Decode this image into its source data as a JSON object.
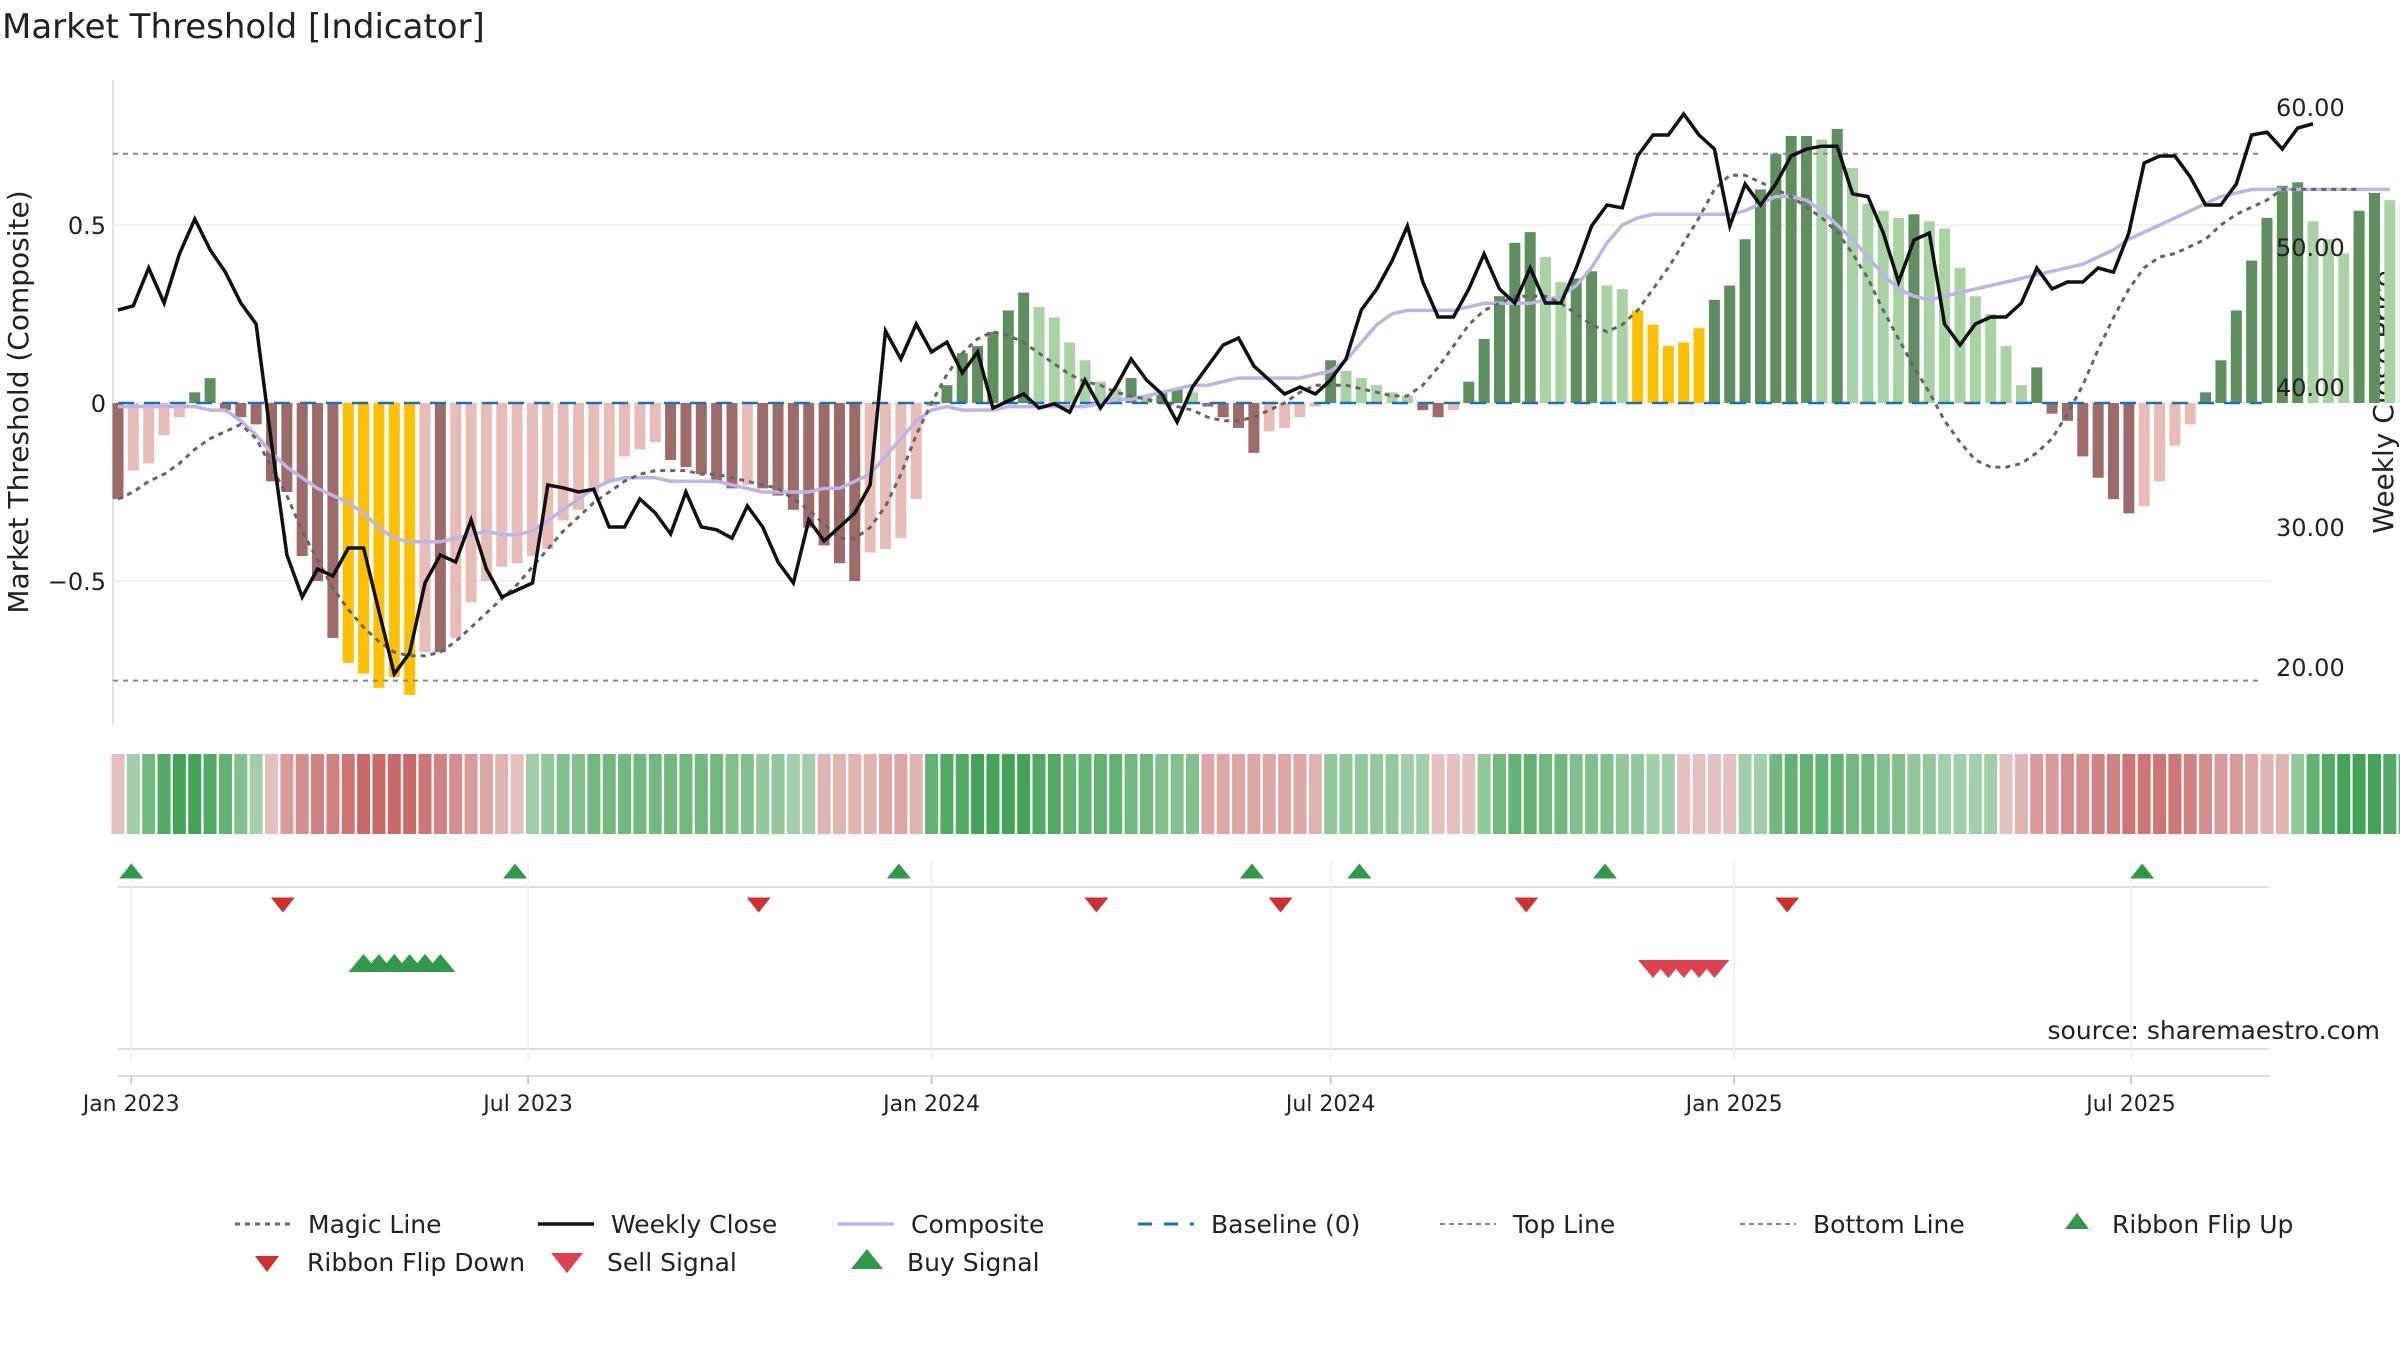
{
  "chart_data": {
    "type": "bar",
    "title": "Market Threshold [Indicator]",
    "ylabel": "Market Threshold (Composite)",
    "y2label": "Weekly Close Price",
    "source": "source: sharemaestro.com",
    "ylim": [
      -0.9,
      0.9
    ],
    "y2lim": [
      16.0,
      62.0
    ],
    "yticks": [
      {
        "v": 0.5,
        "label": "0.5"
      },
      {
        "v": 0,
        "label": "0"
      },
      {
        "v": -0.5,
        "label": "−0.5"
      }
    ],
    "y2ticks": [
      {
        "v": 60,
        "label": "60.00"
      },
      {
        "v": 50,
        "label": "50.00"
      },
      {
        "v": 40,
        "label": "40.00"
      },
      {
        "v": 30,
        "label": "30.00"
      },
      {
        "v": 20,
        "label": "20.00"
      }
    ],
    "top_line": 0.7,
    "bottom_line": -0.78,
    "baseline": 0,
    "start_date": "2022-12-26",
    "x_ticks": [
      {
        "date": "2023-01-01",
        "label": "Jan 2023"
      },
      {
        "date": "2023-07-01",
        "label": "Jul 2023"
      },
      {
        "date": "2024-01-01",
        "label": "Jan 2024"
      },
      {
        "date": "2024-07-01",
        "label": "Jul 2024"
      },
      {
        "date": "2025-01-01",
        "label": "Jan 2025"
      },
      {
        "date": "2025-07-01",
        "label": "Jul 2025"
      }
    ],
    "colors": {
      "dark_green": "#5f8f5f",
      "light_green": "#a9d3a4",
      "dark_red": "#9e6b6b",
      "light_red": "#e9bdb7",
      "yellow": "#ffc000",
      "magic": "#666666",
      "close": "#111111",
      "composite": "#bdb5e6",
      "baseline": "#1f6fb5",
      "thresh": "#888888",
      "flip_up": "#2e9a4a",
      "flip_down": "#cf2f2f",
      "buy": "#2e9a4a",
      "sell": "#e04050"
    },
    "series": [
      {
        "name": "Composite (bars)",
        "values": [
          -0.27,
          -0.19,
          -0.17,
          -0.09,
          -0.04,
          0.03,
          0.07,
          -0.02,
          -0.04,
          -0.06,
          -0.22,
          -0.25,
          -0.43,
          -0.5,
          -0.66,
          -0.73,
          -0.76,
          -0.8,
          -0.77,
          -0.82,
          -0.7,
          -0.7,
          -0.66,
          -0.56,
          -0.5,
          -0.46,
          -0.45,
          -0.43,
          -0.41,
          -0.33,
          -0.3,
          -0.25,
          -0.22,
          -0.15,
          -0.13,
          -0.11,
          -0.16,
          -0.18,
          -0.2,
          -0.22,
          -0.24,
          -0.23,
          -0.24,
          -0.26,
          -0.3,
          -0.35,
          -0.4,
          -0.45,
          -0.5,
          -0.42,
          -0.41,
          -0.38,
          -0.27,
          -0.01,
          0.05,
          0.14,
          0.16,
          0.2,
          0.26,
          0.31,
          0.27,
          0.24,
          0.17,
          0.12,
          0.06,
          0.04,
          0.07,
          0.02,
          0.03,
          0.04,
          0.03,
          -0.01,
          -0.04,
          -0.07,
          -0.14,
          -0.08,
          -0.07,
          -0.04,
          -0.01,
          0.12,
          0.09,
          0.07,
          0.05,
          0.03,
          0.02,
          -0.02,
          -0.04,
          -0.02,
          0.06,
          0.18,
          0.3,
          0.45,
          0.48,
          0.41,
          0.34,
          0.35,
          0.37,
          0.33,
          0.32,
          0.26,
          0.22,
          0.16,
          0.17,
          0.21,
          0.29,
          0.33,
          0.46,
          0.6,
          0.7,
          0.75,
          0.75,
          0.74,
          0.77,
          0.66,
          0.56,
          0.54,
          0.52,
          0.53,
          0.51,
          0.49,
          0.38,
          0.3,
          0.25,
          0.16,
          0.05,
          0.1,
          -0.03,
          -0.05,
          -0.15,
          -0.21,
          -0.27,
          -0.31,
          -0.29,
          -0.22,
          -0.12,
          -0.06,
          0.03,
          0.12,
          0.26,
          0.4,
          0.52,
          0.61,
          0.62,
          0.51,
          0.46,
          0.42,
          0.54,
          0.59,
          0.57,
          0.56,
          0.64
        ]
      },
      {
        "name": "Weekly Close",
        "values": [
          45.5,
          45.8,
          48.5,
          46.0,
          49.5,
          52.0,
          49.8,
          48.2,
          46.0,
          44.5,
          36.0,
          28.0,
          25.0,
          27.0,
          26.5,
          28.5,
          28.5,
          24.0,
          19.5,
          21.0,
          26.0,
          28.0,
          27.5,
          30.5,
          27.0,
          25.0,
          25.5,
          26.0,
          33.0,
          32.8,
          32.5,
          32.7,
          30.0,
          30.0,
          32.0,
          31.0,
          29.5,
          32.5,
          30.0,
          29.8,
          29.2,
          31.5,
          30.0,
          27.5,
          26.0,
          30.5,
          29.0,
          30.0,
          31.0,
          33.0,
          44.0,
          42.0,
          44.5,
          42.5,
          43.2,
          41.0,
          42.5,
          38.5,
          39.0,
          39.5,
          38.5,
          38.8,
          38.2,
          40.5,
          38.5,
          40.0,
          42.0,
          40.5,
          39.5,
          37.5,
          40.0,
          41.5,
          43.0,
          43.5,
          41.5,
          40.5,
          39.5,
          40.0,
          39.5,
          40.5,
          42.0,
          45.5,
          47.0,
          49.0,
          51.5,
          47.5,
          45.0,
          45.0,
          47.0,
          49.5,
          47.0,
          46.0,
          48.5,
          46.0,
          46.0,
          48.5,
          51.5,
          53.0,
          52.8,
          56.5,
          58.0,
          58.0,
          59.5,
          58.0,
          57.0,
          51.5,
          54.5,
          53.0,
          54.5,
          56.5,
          57.0,
          57.2,
          57.2,
          53.8,
          53.6,
          51.0,
          47.5,
          50.5,
          51.0,
          44.5,
          43.0,
          44.5,
          45.0,
          45.0,
          46.0,
          48.5,
          47.0,
          47.5,
          47.5,
          48.5,
          48.2,
          51.0,
          56.0,
          56.5,
          56.5,
          55.0,
          53.0,
          53.0,
          54.5,
          58.0,
          58.2,
          57.0,
          58.5,
          58.8
        ]
      },
      {
        "name": "Magic Line",
        "values": [
          -0.27,
          -0.25,
          -0.22,
          -0.2,
          -0.17,
          -0.13,
          -0.1,
          -0.08,
          -0.06,
          -0.1,
          -0.18,
          -0.26,
          -0.36,
          -0.44,
          -0.52,
          -0.58,
          -0.63,
          -0.67,
          -0.7,
          -0.71,
          -0.71,
          -0.7,
          -0.67,
          -0.63,
          -0.59,
          -0.55,
          -0.51,
          -0.46,
          -0.41,
          -0.36,
          -0.32,
          -0.28,
          -0.25,
          -0.22,
          -0.2,
          -0.19,
          -0.19,
          -0.19,
          -0.2,
          -0.2,
          -0.21,
          -0.22,
          -0.23,
          -0.24,
          -0.27,
          -0.3,
          -0.34,
          -0.38,
          -0.38,
          -0.35,
          -0.29,
          -0.2,
          -0.09,
          0.0,
          0.08,
          0.14,
          0.18,
          0.2,
          0.19,
          0.17,
          0.14,
          0.11,
          0.08,
          0.06,
          0.05,
          0.03,
          0.02,
          0.01,
          0.0,
          -0.01,
          -0.02,
          -0.04,
          -0.05,
          -0.05,
          -0.04,
          -0.02,
          0.0,
          0.03,
          0.05,
          0.05,
          0.05,
          0.04,
          0.03,
          0.02,
          0.02,
          0.05,
          0.1,
          0.16,
          0.22,
          0.26,
          0.28,
          0.3,
          0.3,
          0.3,
          0.28,
          0.25,
          0.22,
          0.2,
          0.22,
          0.26,
          0.32,
          0.38,
          0.45,
          0.52,
          0.6,
          0.64,
          0.64,
          0.62,
          0.6,
          0.58,
          0.55,
          0.52,
          0.48,
          0.42,
          0.35,
          0.26,
          0.18,
          0.1,
          0.03,
          -0.05,
          -0.11,
          -0.16,
          -0.18,
          -0.18,
          -0.17,
          -0.14,
          -0.1,
          -0.03,
          0.05,
          0.15,
          0.24,
          0.32,
          0.38,
          0.41,
          0.42,
          0.44,
          0.46,
          0.5,
          0.53,
          0.55,
          0.57,
          0.6,
          0.6,
          0.6,
          0.6,
          0.6,
          0.6
        ]
      },
      {
        "name": "Composite",
        "values": [
          -0.01,
          -0.01,
          -0.01,
          -0.01,
          -0.01,
          -0.01,
          -0.02,
          -0.02,
          -0.05,
          -0.09,
          -0.14,
          -0.18,
          -0.21,
          -0.24,
          -0.26,
          -0.28,
          -0.31,
          -0.35,
          -0.38,
          -0.39,
          -0.39,
          -0.39,
          -0.38,
          -0.37,
          -0.36,
          -0.37,
          -0.37,
          -0.36,
          -0.33,
          -0.3,
          -0.27,
          -0.24,
          -0.22,
          -0.21,
          -0.21,
          -0.21,
          -0.22,
          -0.22,
          -0.22,
          -0.22,
          -0.23,
          -0.24,
          -0.25,
          -0.25,
          -0.25,
          -0.25,
          -0.24,
          -0.24,
          -0.22,
          -0.2,
          -0.15,
          -0.1,
          -0.05,
          -0.02,
          -0.01,
          -0.02,
          -0.02,
          -0.02,
          -0.01,
          -0.01,
          -0.01,
          -0.01,
          -0.01,
          -0.01,
          0.0,
          0.01,
          0.01,
          0.02,
          0.03,
          0.04,
          0.05,
          0.05,
          0.06,
          0.07,
          0.07,
          0.07,
          0.07,
          0.07,
          0.08,
          0.09,
          0.12,
          0.17,
          0.22,
          0.25,
          0.26,
          0.26,
          0.26,
          0.26,
          0.27,
          0.28,
          0.28,
          0.28,
          0.28,
          0.29,
          0.3,
          0.33,
          0.38,
          0.45,
          0.5,
          0.52,
          0.53,
          0.53,
          0.53,
          0.53,
          0.53,
          0.53,
          0.54,
          0.56,
          0.58,
          0.58,
          0.57,
          0.54,
          0.5,
          0.46,
          0.41,
          0.36,
          0.32,
          0.3,
          0.29,
          0.3,
          0.31,
          0.32,
          0.33,
          0.34,
          0.35,
          0.36,
          0.37,
          0.38,
          0.39,
          0.41,
          0.43,
          0.46,
          0.48,
          0.5,
          0.52,
          0.54,
          0.56,
          0.58,
          0.59,
          0.6,
          0.6,
          0.6,
          0.6,
          0.6,
          0.6,
          0.6,
          0.6,
          0.6,
          0.6
        ]
      },
      {
        "name": "Ribbon",
        "values": [
          -0.2,
          0.3,
          0.6,
          0.8,
          0.9,
          0.9,
          0.8,
          0.7,
          0.5,
          0.3,
          -0.2,
          -0.5,
          -0.6,
          -0.7,
          -0.7,
          -0.8,
          -0.9,
          -0.9,
          -0.9,
          -0.9,
          -0.8,
          -0.7,
          -0.6,
          -0.5,
          -0.4,
          -0.3,
          -0.2,
          0.3,
          0.4,
          0.5,
          0.5,
          0.6,
          0.6,
          0.6,
          0.6,
          0.6,
          0.6,
          0.6,
          0.6,
          0.6,
          0.5,
          0.5,
          0.4,
          0.4,
          0.3,
          0.3,
          -0.3,
          -0.3,
          -0.3,
          -0.3,
          -0.4,
          -0.4,
          -0.3,
          0.7,
          0.8,
          0.8,
          0.9,
          0.9,
          0.9,
          0.9,
          0.8,
          0.8,
          0.7,
          0.7,
          0.7,
          0.7,
          0.6,
          0.6,
          0.5,
          0.5,
          0.5,
          -0.4,
          -0.4,
          -0.4,
          -0.4,
          -0.4,
          -0.4,
          -0.4,
          -0.3,
          0.4,
          0.4,
          0.4,
          0.4,
          0.4,
          0.3,
          0.3,
          -0.2,
          -0.2,
          -0.2,
          0.4,
          0.6,
          0.7,
          0.7,
          0.6,
          0.6,
          0.5,
          0.5,
          0.5,
          0.4,
          0.4,
          0.3,
          0.3,
          -0.2,
          -0.2,
          -0.2,
          -0.2,
          0.3,
          0.3,
          0.6,
          0.7,
          0.7,
          0.7,
          0.7,
          0.6,
          0.6,
          0.5,
          0.5,
          0.4,
          0.4,
          0.3,
          0.3,
          0.3,
          0.3,
          -0.2,
          -0.3,
          -0.5,
          -0.5,
          -0.6,
          -0.6,
          -0.7,
          -0.7,
          -0.8,
          -0.8,
          -0.8,
          -0.8,
          -0.7,
          -0.6,
          -0.5,
          -0.5,
          -0.4,
          -0.3,
          -0.3,
          0.4,
          0.7,
          0.8,
          0.9,
          0.9,
          0.9,
          0.8,
          0.7,
          0.7,
          0.6,
          0.6
        ]
      }
    ],
    "ribbon_flip_up": [
      1,
      26,
      51,
      74,
      81,
      97,
      132
    ],
    "ribbon_flip_down": [
      11,
      42,
      64,
      76,
      92,
      109
    ],
    "buy_signals": [
      16,
      17,
      18,
      19,
      20,
      21
    ],
    "sell_signals": [
      100,
      101,
      102,
      103,
      104
    ],
    "legend": [
      {
        "label": "Magic Line",
        "kind": "dotted"
      },
      {
        "label": "Weekly Close",
        "kind": "solid"
      },
      {
        "label": "Composite",
        "kind": "composite"
      },
      {
        "label": "Baseline (0)",
        "kind": "dashed"
      },
      {
        "label": "Top Line",
        "kind": "thin-dashed"
      },
      {
        "label": "Bottom Line",
        "kind": "thin-dashed"
      },
      {
        "label": "Ribbon Flip Up",
        "kind": "tri-up-small"
      },
      {
        "label": "Ribbon Flip Down",
        "kind": "tri-down-small"
      },
      {
        "label": "Sell Signal",
        "kind": "tri-down-big"
      },
      {
        "label": "Buy Signal",
        "kind": "tri-up-big"
      }
    ]
  }
}
